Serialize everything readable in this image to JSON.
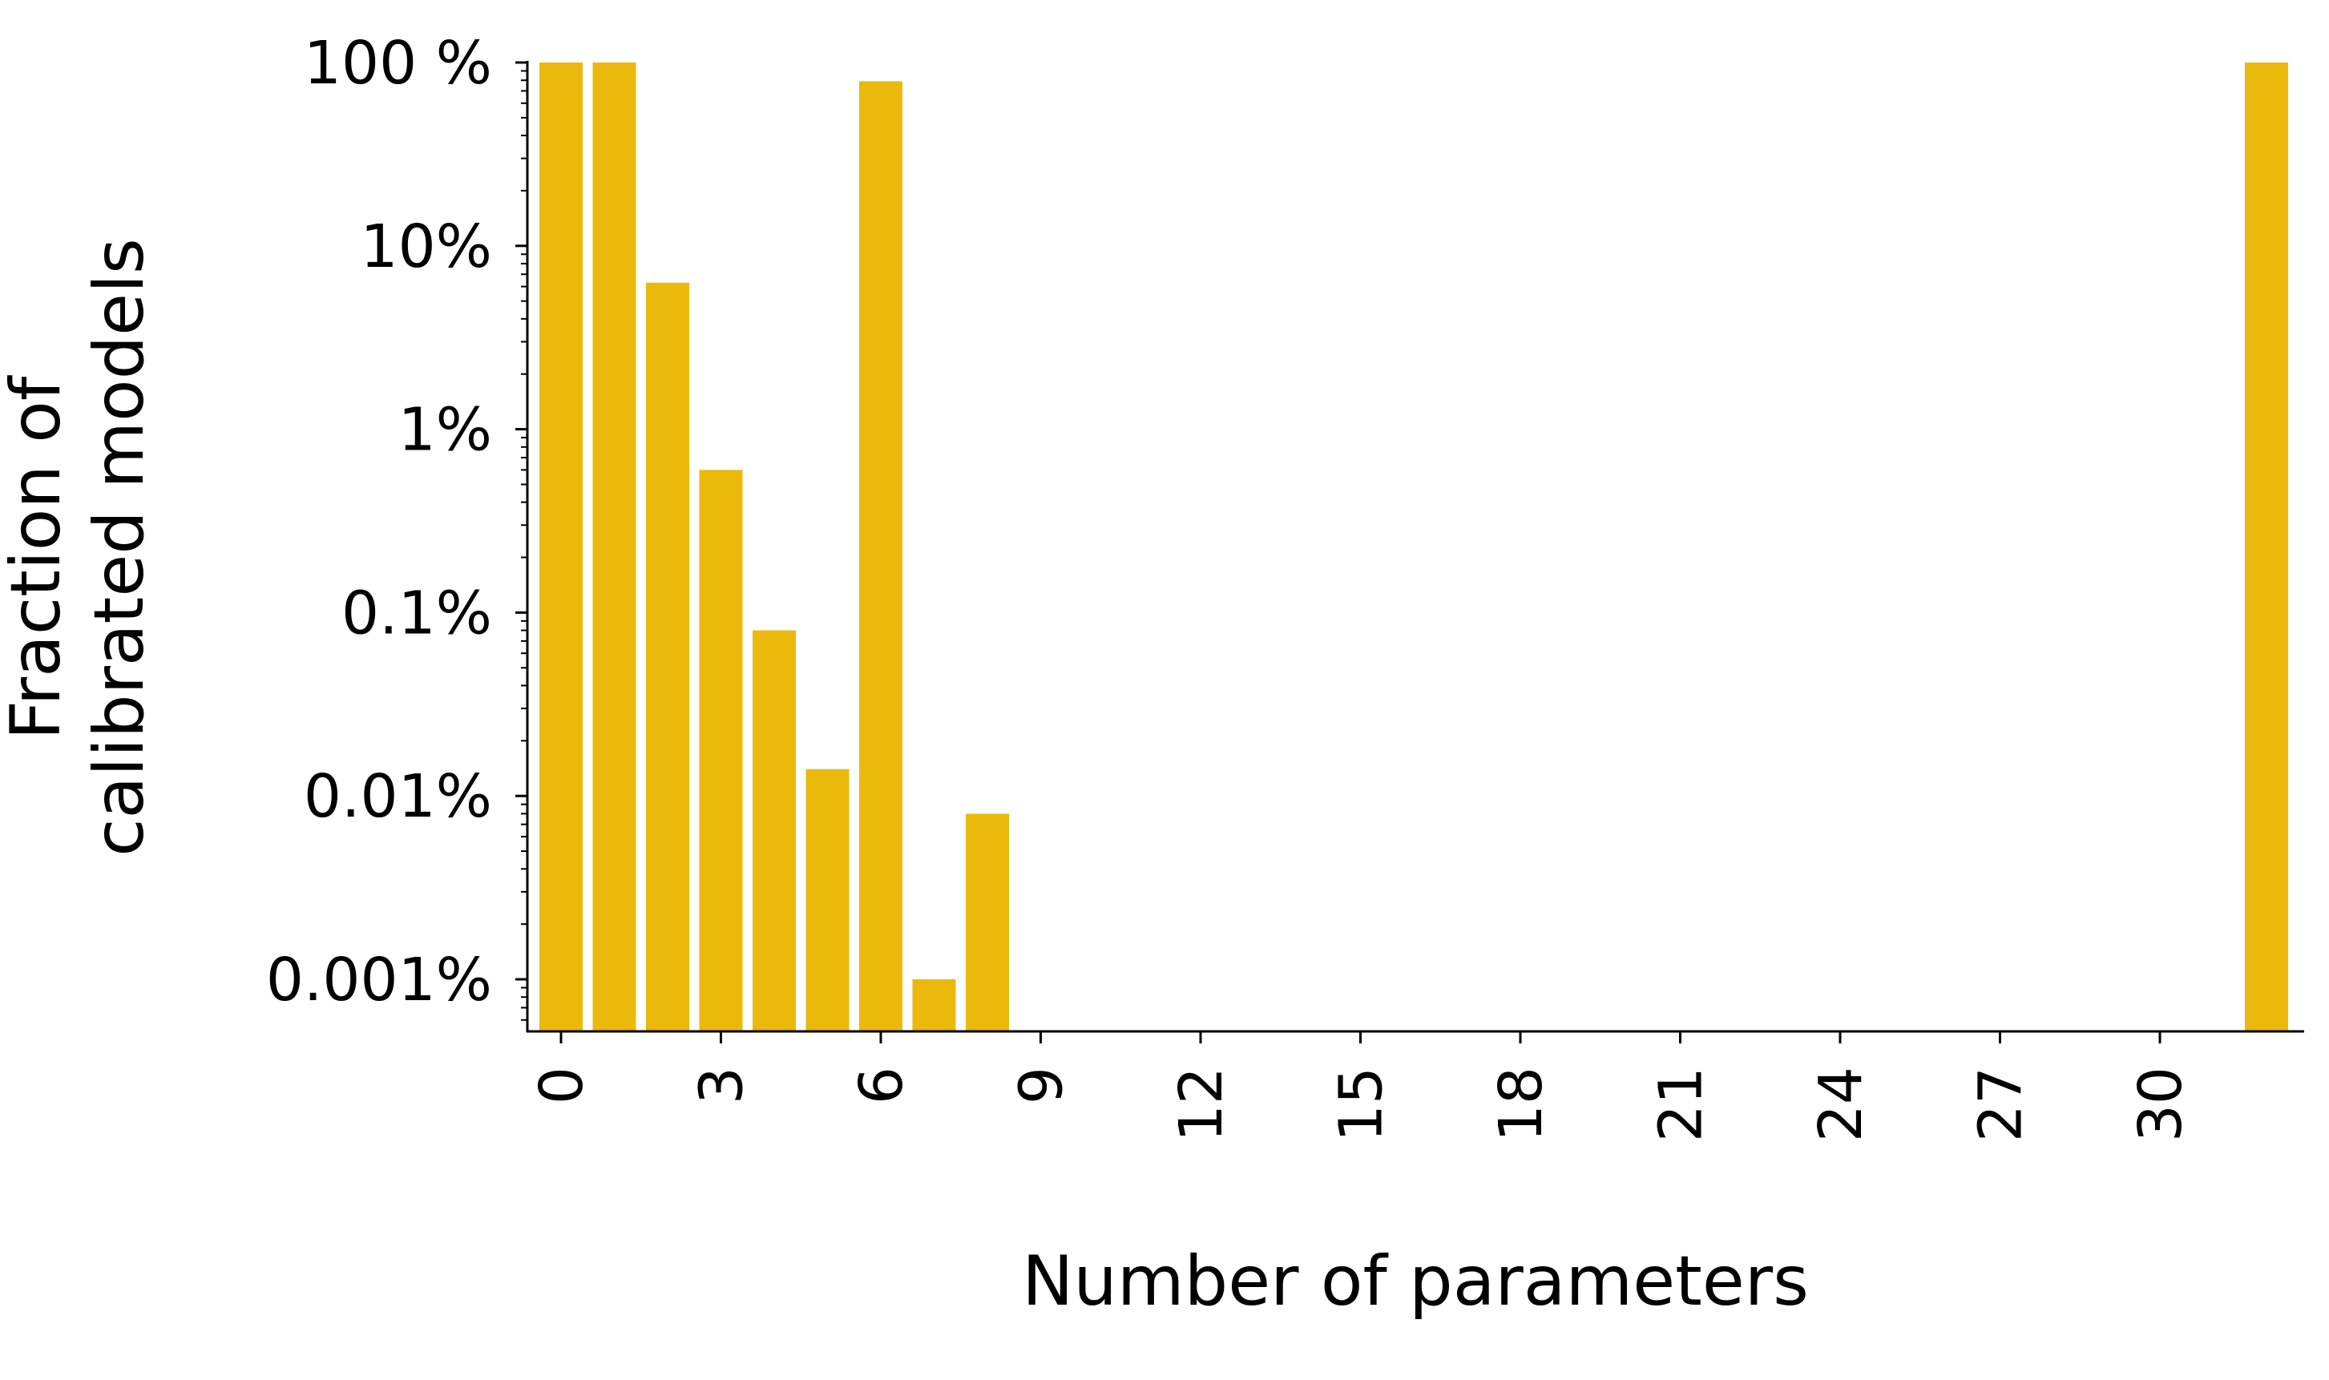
{
  "chart_data": {
    "type": "bar",
    "title": "",
    "xlabel": "Number of parameters",
    "ylabel_lines": [
      "Fraction of",
      "calibrated models"
    ],
    "yscale": "log",
    "ylim": [
      0.0005,
      100
    ],
    "xlim": [
      -0.5,
      32.5
    ],
    "grid": false,
    "bar_color": "#EAB90C",
    "x_ticks": [
      {
        "value": 0,
        "label": "0"
      },
      {
        "value": 3,
        "label": "3"
      },
      {
        "value": 6,
        "label": "6"
      },
      {
        "value": 9,
        "label": "9"
      },
      {
        "value": 12,
        "label": "12"
      },
      {
        "value": 15,
        "label": "15"
      },
      {
        "value": 18,
        "label": "18"
      },
      {
        "value": 21,
        "label": "21"
      },
      {
        "value": 24,
        "label": "24"
      },
      {
        "value": 27,
        "label": "27"
      },
      {
        "value": 30,
        "label": "30"
      }
    ],
    "y_ticks": [
      {
        "value": 100,
        "label": "100 %"
      },
      {
        "value": 10,
        "label": "10%"
      },
      {
        "value": 1,
        "label": "1%"
      },
      {
        "value": 0.1,
        "label": "0.1%"
      },
      {
        "value": 0.01,
        "label": "0.01%"
      },
      {
        "value": 0.001,
        "label": "0.001%"
      }
    ],
    "bars": [
      {
        "x": 0,
        "value": 100
      },
      {
        "x": 1,
        "value": 100
      },
      {
        "x": 2,
        "value": 6.3
      },
      {
        "x": 3,
        "value": 0.6
      },
      {
        "x": 4,
        "value": 0.08
      },
      {
        "x": 5,
        "value": 0.014
      },
      {
        "x": 6,
        "value": 79
      },
      {
        "x": 7,
        "value": 0.001
      },
      {
        "x": 8,
        "value": 0.008
      },
      {
        "x": 32,
        "value": 100
      }
    ]
  }
}
